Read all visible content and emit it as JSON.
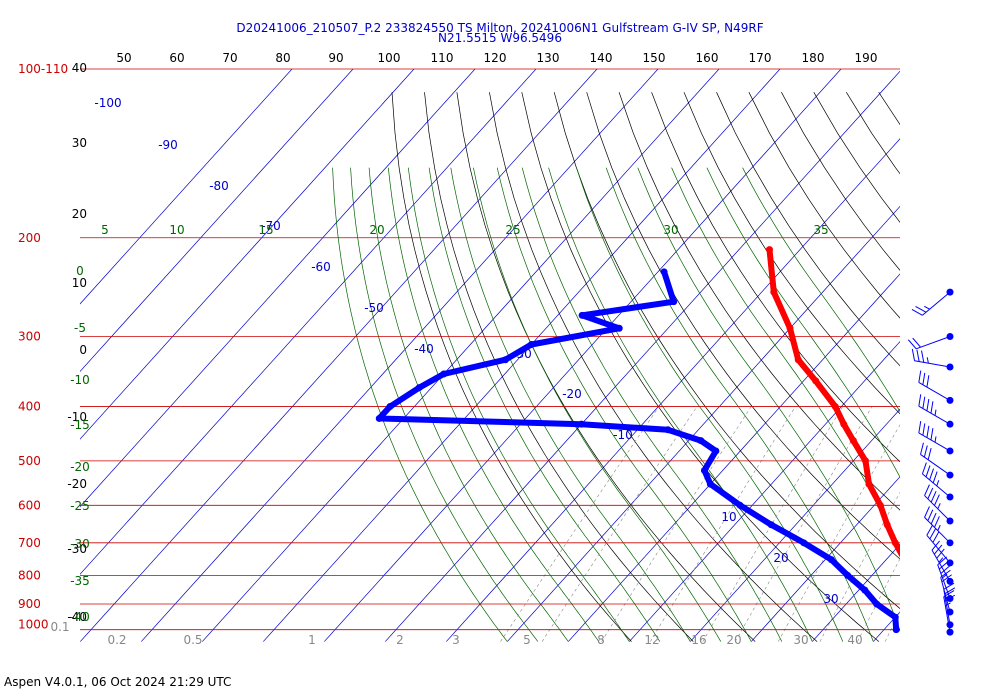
{
  "header": {
    "title_line1": "D20241006_210507_P.2 233824550 TS Milton, 20241006N1 Gulfstream G-IV SP, N49RF",
    "title_line2": "N21.5515 W96.5496"
  },
  "footer": {
    "text": "Aspen V4.0.1, 06 Oct 2024  21:29 UTC"
  },
  "chart_data": {
    "type": "skew-t",
    "colors": {
      "temperature": "#ff0000",
      "dewpoint": "#0000ff",
      "isobar": "#cc0000",
      "isotherm": "#0000cc",
      "dry_adiabat": "#000000",
      "moist_adiabat": "#006600",
      "mixing_ratio": "#888888",
      "title": "#0000cc"
    },
    "pressure_labels": [
      "100-110",
      "200",
      "300",
      "400",
      "500",
      "600",
      "700",
      "800",
      "900",
      "1000"
    ],
    "height_labels": [
      "40",
      "30",
      "20",
      "10",
      "0",
      "-10",
      "-20",
      "-30",
      "-40"
    ],
    "top_temperature_labels": [
      "50",
      "60",
      "70",
      "80",
      "90",
      "100",
      "110",
      "120",
      "130",
      "140",
      "150",
      "160",
      "170",
      "180",
      "190"
    ],
    "isotherm_labels": [
      "-100",
      "-90",
      "-80",
      "-70",
      "-60",
      "-50",
      "-40",
      "-30",
      "-20",
      "-10",
      "10",
      "20",
      "30"
    ],
    "moist_adiabat_labels_top": [
      "5",
      "10",
      "15",
      "20",
      "25",
      "30",
      "35"
    ],
    "moist_adiabat_labels_left": [
      "0",
      "-5",
      "-10",
      "-15",
      "-20",
      "-25",
      "-30",
      "-35",
      "-40"
    ],
    "mixing_ratio_labels": [
      "0.1",
      "0.2",
      "0.5",
      "1",
      "2",
      "3",
      "5",
      "8",
      "12",
      "16",
      "20",
      "30",
      "40"
    ],
    "temperature_profile": [
      [
        210,
        -55
      ],
      [
        250,
        -48
      ],
      [
        290,
        -40
      ],
      [
        330,
        -34
      ],
      [
        360,
        -28
      ],
      [
        400,
        -21
      ],
      [
        430,
        -17
      ],
      [
        460,
        -13
      ],
      [
        500,
        -8
      ],
      [
        550,
        -4
      ],
      [
        600,
        1
      ],
      [
        650,
        5
      ],
      [
        700,
        9
      ],
      [
        750,
        13
      ],
      [
        800,
        16
      ],
      [
        850,
        19
      ],
      [
        900,
        22
      ],
      [
        950,
        25
      ],
      [
        1010,
        28
      ]
    ],
    "dewpoint_profile": [
      [
        230,
        -69
      ],
      [
        260,
        -63
      ],
      [
        275,
        -76
      ],
      [
        290,
        -68
      ],
      [
        310,
        -80
      ],
      [
        330,
        -82
      ],
      [
        350,
        -90
      ],
      [
        370,
        -92
      ],
      [
        400,
        -94
      ],
      [
        420,
        -94
      ],
      [
        430,
        -60
      ],
      [
        440,
        -45
      ],
      [
        460,
        -38
      ],
      [
        480,
        -34
      ],
      [
        520,
        -33
      ],
      [
        550,
        -30
      ],
      [
        600,
        -22
      ],
      [
        650,
        -14
      ],
      [
        700,
        -6
      ],
      [
        750,
        1
      ],
      [
        800,
        6
      ],
      [
        850,
        11
      ],
      [
        900,
        15
      ],
      [
        950,
        20
      ],
      [
        1000,
        22
      ]
    ],
    "wind_barbs": [
      {
        "pressure": 250,
        "dir": 230,
        "speed": 15
      },
      {
        "pressure": 300,
        "dir": 250,
        "speed": 20
      },
      {
        "pressure": 340,
        "dir": 280,
        "speed": 25
      },
      {
        "pressure": 390,
        "dir": 300,
        "speed": 30
      },
      {
        "pressure": 430,
        "dir": 300,
        "speed": 35
      },
      {
        "pressure": 480,
        "dir": 300,
        "speed": 35
      },
      {
        "pressure": 530,
        "dir": 305,
        "speed": 30
      },
      {
        "pressure": 580,
        "dir": 310,
        "speed": 35
      },
      {
        "pressure": 640,
        "dir": 315,
        "speed": 35
      },
      {
        "pressure": 700,
        "dir": 315,
        "speed": 35
      },
      {
        "pressure": 760,
        "dir": 320,
        "speed": 30
      },
      {
        "pressure": 820,
        "dir": 330,
        "speed": 25
      },
      {
        "pressure": 880,
        "dir": 340,
        "speed": 25
      },
      {
        "pressure": 930,
        "dir": 345,
        "speed": 20
      },
      {
        "pressure": 980,
        "dir": 350,
        "speed": 15
      },
      {
        "pressure": 1010,
        "dir": 350,
        "speed": 15
      }
    ]
  }
}
